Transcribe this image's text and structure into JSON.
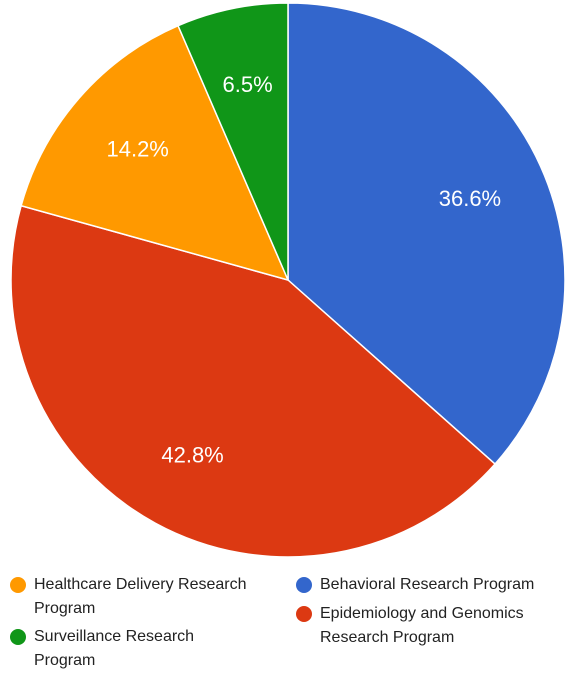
{
  "chart_data": {
    "type": "pie",
    "slices": [
      {
        "label": "Behavioral Research Program",
        "value": 36.6,
        "display": "36.6%",
        "color": "#3366cc"
      },
      {
        "label": "Epidemiology and Genomics Research Program",
        "value": 42.8,
        "display": "42.8%",
        "color": "#dc3912"
      },
      {
        "label": "Healthcare Delivery Research Program",
        "value": 14.2,
        "display": "14.2%",
        "color": "#ff9900"
      },
      {
        "label": "Surveillance Research Program",
        "value": 6.5,
        "display": "6.5%",
        "color": "#109618"
      }
    ],
    "legend": {
      "placement": "bottom",
      "items": [
        {
          "label_line1": "Healthcare Delivery Research",
          "label_line2": "Program",
          "color": "#ff9900"
        },
        {
          "label_line1": "Surveillance Research",
          "label_line2": "Program",
          "color": "#109618"
        },
        {
          "label_line1": "Behavioral Research Program",
          "label_line2": "",
          "color": "#3366cc"
        },
        {
          "label_line1": "Epidemiology and Genomics",
          "label_line2": "Research Program",
          "color": "#dc3912"
        }
      ]
    }
  }
}
